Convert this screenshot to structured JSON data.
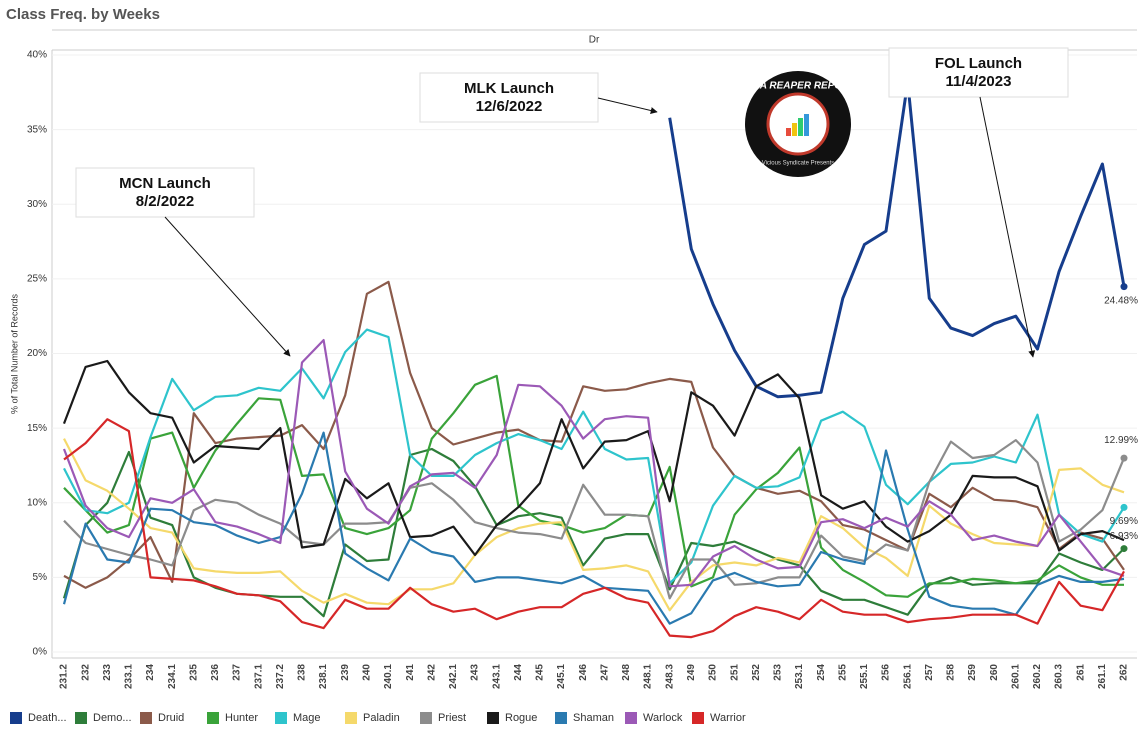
{
  "chart_data": {
    "type": "line",
    "title": "Class Freq. by Weeks",
    "header": "Dr",
    "y_label": "% of Total Number of Records",
    "categories": [
      "231.2",
      "232",
      "233",
      "233.1",
      "234",
      "234.1",
      "235",
      "236",
      "237",
      "237.1",
      "237.2",
      "238",
      "238.1",
      "239",
      "240",
      "240.1",
      "241",
      "242",
      "242.1",
      "243",
      "243.1",
      "244",
      "245",
      "245.1",
      "246",
      "247",
      "248",
      "248.1",
      "248.3",
      "249",
      "250",
      "251",
      "252",
      "253",
      "253.1",
      "254",
      "255",
      "255.1",
      "256",
      "256.1",
      "257",
      "258",
      "259",
      "260",
      "260.1",
      "260.2",
      "260.3",
      "261",
      "261.1",
      "262"
    ],
    "ylim": [
      0,
      40
    ],
    "yticks": [
      {
        "value": 0,
        "label": "0%"
      },
      {
        "value": 5,
        "label": "5%"
      },
      {
        "value": 10,
        "label": "10%"
      },
      {
        "value": 15,
        "label": "15%"
      },
      {
        "value": 20,
        "label": "20%"
      },
      {
        "value": 25,
        "label": "25%"
      },
      {
        "value": 30,
        "label": "30%"
      },
      {
        "value": 35,
        "label": "35%"
      },
      {
        "value": 40,
        "label": "40%"
      }
    ],
    "grid": true,
    "legend": "bottom",
    "series": [
      {
        "name": "Death...",
        "color": "#163d8c",
        "values": [
          null,
          null,
          null,
          null,
          null,
          null,
          null,
          null,
          null,
          null,
          null,
          null,
          null,
          null,
          null,
          null,
          null,
          null,
          null,
          null,
          null,
          null,
          null,
          null,
          null,
          null,
          null,
          null,
          35.8,
          27,
          23.3,
          20.2,
          17.8,
          17.1,
          17.2,
          17.4,
          23.7,
          27.3,
          28.2,
          38.2,
          23.7,
          21.7,
          21.2,
          22,
          22.5,
          20.3,
          25.5,
          29.2,
          32.7,
          24.48
        ],
        "value_labels": [
          null,
          null,
          null,
          null,
          null,
          null,
          null,
          null,
          null,
          null,
          null,
          null,
          null,
          null,
          null,
          null,
          null,
          null,
          null,
          null,
          null,
          null,
          null,
          null,
          null,
          null,
          null,
          null,
          null,
          null,
          null,
          null,
          null,
          null,
          null,
          null,
          null,
          null,
          null,
          null,
          null,
          null,
          null,
          null,
          null,
          null,
          null,
          null,
          null,
          "24.48%"
        ]
      },
      {
        "name": "Demo...",
        "color": "#2e7d3a",
        "values": [
          3.6,
          8.5,
          10,
          13.4,
          9,
          8.5,
          5,
          4.3,
          3.9,
          3.8,
          3.7,
          3.7,
          2.4,
          7.2,
          6.1,
          6.2,
          13.2,
          13.6,
          12.8,
          11.1,
          8.5,
          9.1,
          9.3,
          9,
          5.8,
          7.6,
          7.9,
          7.9,
          4.2,
          7.3,
          7.1,
          7.4,
          6.8,
          6.2,
          5.8,
          4.1,
          3.5,
          3.5,
          3,
          2.5,
          4.5,
          5,
          4.5,
          4.6,
          4.6,
          4.6,
          6.6,
          6,
          5.5,
          6.93
        ],
        "value_labels": [
          null,
          null,
          null,
          null,
          null,
          null,
          null,
          null,
          null,
          null,
          null,
          null,
          null,
          null,
          null,
          null,
          null,
          null,
          null,
          null,
          null,
          null,
          null,
          null,
          null,
          null,
          null,
          null,
          null,
          null,
          null,
          null,
          null,
          null,
          null,
          null,
          null,
          null,
          null,
          null,
          null,
          null,
          null,
          null,
          null,
          null,
          null,
          null,
          null,
          "6.93%"
        ]
      },
      {
        "name": "Druid",
        "color": "#8b5a4a",
        "values": [
          5.1,
          4.3,
          5,
          6.2,
          7.7,
          4.7,
          16,
          14,
          14.3,
          14.4,
          14.5,
          15.2,
          13.6,
          17.2,
          24,
          24.8,
          18.7,
          15,
          13.9,
          14.3,
          14.7,
          14.9,
          14.2,
          14.1,
          17.8,
          17.5,
          17.6,
          18,
          18.3,
          18.1,
          13.7,
          11.8,
          11,
          10.6,
          10.8,
          10.1,
          8.5,
          8.2,
          7.5,
          6.8,
          10.6,
          9.7,
          11,
          10.2,
          10.1,
          9.7,
          6.9,
          8,
          7.6,
          5.5
        ]
      },
      {
        "name": "Hunter",
        "color": "#3aa33a",
        "values": [
          11,
          9.5,
          8,
          8.5,
          14.3,
          14.7,
          11,
          13.5,
          15.3,
          17,
          16.9,
          11.8,
          11.9,
          8.3,
          7.9,
          8.3,
          9.5,
          14.3,
          16,
          17.9,
          18.5,
          9.8,
          8.8,
          8.5,
          8,
          8.3,
          9.2,
          9.1,
          12.4,
          4.4,
          5,
          9.2,
          10.9,
          12,
          13.7,
          7,
          5.5,
          4.7,
          3.8,
          3.7,
          4.6,
          4.6,
          4.9,
          4.8,
          4.6,
          4.8,
          5.8,
          5,
          4.5,
          4.5
        ]
      },
      {
        "name": "Mage",
        "color": "#2ec4cc",
        "values": [
          12.3,
          9.5,
          9.3,
          10,
          14.4,
          18.3,
          16.2,
          17.1,
          17.2,
          17.7,
          17.5,
          19,
          17,
          20.1,
          21.6,
          21.1,
          13.2,
          11.8,
          11.8,
          13.2,
          14,
          14.6,
          14.2,
          13.6,
          16.1,
          13.6,
          12.9,
          13,
          4.6,
          6,
          9.8,
          11.8,
          11,
          11.1,
          11.7,
          15.5,
          16.1,
          15.1,
          11.2,
          9.9,
          11.4,
          12.6,
          12.7,
          13.1,
          12.7,
          15.9,
          9.2,
          7.9,
          7.4,
          9.69
        ],
        "value_labels": [
          null,
          null,
          null,
          null,
          null,
          null,
          null,
          null,
          null,
          null,
          null,
          null,
          null,
          null,
          null,
          null,
          null,
          null,
          null,
          null,
          null,
          null,
          null,
          null,
          null,
          null,
          null,
          null,
          null,
          null,
          null,
          null,
          null,
          null,
          null,
          null,
          null,
          null,
          null,
          null,
          null,
          null,
          null,
          null,
          null,
          null,
          null,
          null,
          null,
          "9.69%"
        ]
      },
      {
        "name": "Paladin",
        "color": "#f5d96b",
        "values": [
          14.3,
          11.5,
          10.8,
          9.6,
          8.3,
          8,
          5.6,
          5.4,
          5.3,
          5.3,
          5.4,
          4.1,
          3.3,
          3.9,
          3.3,
          3.2,
          4.2,
          4.2,
          4.6,
          6.5,
          7.7,
          8.3,
          8.6,
          8.7,
          5.5,
          5.6,
          5.8,
          5.4,
          2.8,
          4.7,
          5.8,
          6,
          5.8,
          6.3,
          6,
          9.1,
          8.3,
          7,
          6.3,
          5.1,
          9.8,
          8.6,
          7.9,
          7.3,
          7.2,
          7.1,
          12.2,
          12.3,
          11.2,
          10.7
        ]
      },
      {
        "name": "Priest",
        "color": "#8c8c8c",
        "values": [
          8.8,
          7.3,
          6.9,
          6.5,
          6.2,
          5.8,
          9.5,
          10.2,
          10,
          9.2,
          8.6,
          7.4,
          7.2,
          8.6,
          8.6,
          8.7,
          11,
          11.3,
          10.2,
          8.7,
          8.3,
          8,
          7.9,
          7.6,
          11.2,
          9.2,
          9.2,
          9.1,
          3.6,
          6.2,
          6.2,
          4.5,
          4.6,
          5,
          5,
          7.8,
          6.4,
          6.1,
          7.2,
          6.8,
          11.4,
          14.1,
          13,
          13.2,
          14.2,
          12.7,
          7.4,
          8.2,
          9.5,
          12.99
        ],
        "value_labels": [
          null,
          null,
          null,
          null,
          null,
          null,
          null,
          null,
          null,
          null,
          null,
          null,
          null,
          null,
          null,
          null,
          null,
          null,
          null,
          null,
          null,
          null,
          null,
          null,
          null,
          null,
          null,
          null,
          null,
          null,
          null,
          null,
          null,
          null,
          null,
          null,
          null,
          null,
          null,
          null,
          null,
          null,
          null,
          null,
          null,
          null,
          null,
          null,
          null,
          "12.99%"
        ]
      },
      {
        "name": "Rogue",
        "color": "#1a1a1a",
        "values": [
          15.3,
          19.1,
          19.5,
          17.4,
          16,
          15.7,
          12.7,
          13.8,
          13.7,
          13.6,
          15,
          7,
          7.2,
          11.6,
          10.3,
          11.3,
          7.7,
          7.8,
          8.4,
          6.5,
          8.5,
          9.7,
          11.3,
          15.6,
          12.3,
          14.1,
          14.2,
          14.8,
          10.1,
          17.4,
          16.5,
          14.5,
          17.8,
          18.6,
          17,
          10.5,
          9.6,
          10.1,
          8.4,
          7.4,
          8.1,
          9.2,
          11.8,
          11.7,
          11.7,
          11.1,
          6.8,
          7.9,
          8.1,
          7.5
        ]
      },
      {
        "name": "Shaman",
        "color": "#2a7ab0",
        "values": [
          3.2,
          8.6,
          6.2,
          6,
          9.6,
          9.5,
          8.7,
          8.5,
          7.8,
          7.3,
          7.7,
          10.6,
          14.7,
          6.6,
          5.6,
          4.8,
          7.6,
          6.7,
          6.4,
          4.7,
          5,
          5,
          4.8,
          4.6,
          5.1,
          4.3,
          4.2,
          4.1,
          1.9,
          2.6,
          4.8,
          5.3,
          4.7,
          4.4,
          4.5,
          6.7,
          6.2,
          5.9,
          13.5,
          8.2,
          3.7,
          3.1,
          2.9,
          2.9,
          2.5,
          4.5,
          5.1,
          4.7,
          4.7,
          4.9
        ]
      },
      {
        "name": "Warlock",
        "color": "#9b59b6",
        "values": [
          13.6,
          9.8,
          8.3,
          7.7,
          10.3,
          10,
          10.9,
          8.7,
          8.4,
          7.9,
          7.3,
          19.4,
          20.9,
          12.1,
          9.6,
          8.6,
          11.1,
          11.9,
          12,
          11,
          13.2,
          17.9,
          17.8,
          16.5,
          14.3,
          15.6,
          15.8,
          15.7,
          4.4,
          4.5,
          6.4,
          7.1,
          6.2,
          5.6,
          5.7,
          8.7,
          8.9,
          8.3,
          9,
          8.4,
          10.1,
          9.2,
          7.5,
          7.8,
          7.4,
          7.1,
          9.2,
          7.4,
          5.6,
          5.1
        ]
      },
      {
        "name": "Warrior",
        "color": "#d62728",
        "values": [
          12.9,
          14,
          15.6,
          14.8,
          5,
          4.9,
          4.8,
          4.4,
          3.9,
          3.8,
          3.4,
          2,
          1.6,
          3.5,
          2.9,
          2.9,
          4.3,
          3.2,
          2.7,
          2.9,
          2.2,
          2.7,
          3,
          3,
          3.9,
          4.3,
          3.6,
          3.3,
          1.1,
          1,
          1.4,
          2.4,
          3,
          2.7,
          2.2,
          3.5,
          2.7,
          2.5,
          2.5,
          2,
          2.2,
          2.3,
          2.5,
          2.5,
          2.5,
          1.9,
          4.7,
          3.1,
          2.8,
          5.4
        ]
      }
    ],
    "annotations": [
      {
        "title": "MCN Launch",
        "date": "8/2/2022"
      },
      {
        "title": "MLK Launch",
        "date": "12/6/2022"
      },
      {
        "title": "FOL Launch",
        "date": "11/4/2023"
      }
    ],
    "logo": {
      "title": "DATA REAPER REPORT",
      "subtitle": "Vicious Syndicate Presents"
    }
  }
}
